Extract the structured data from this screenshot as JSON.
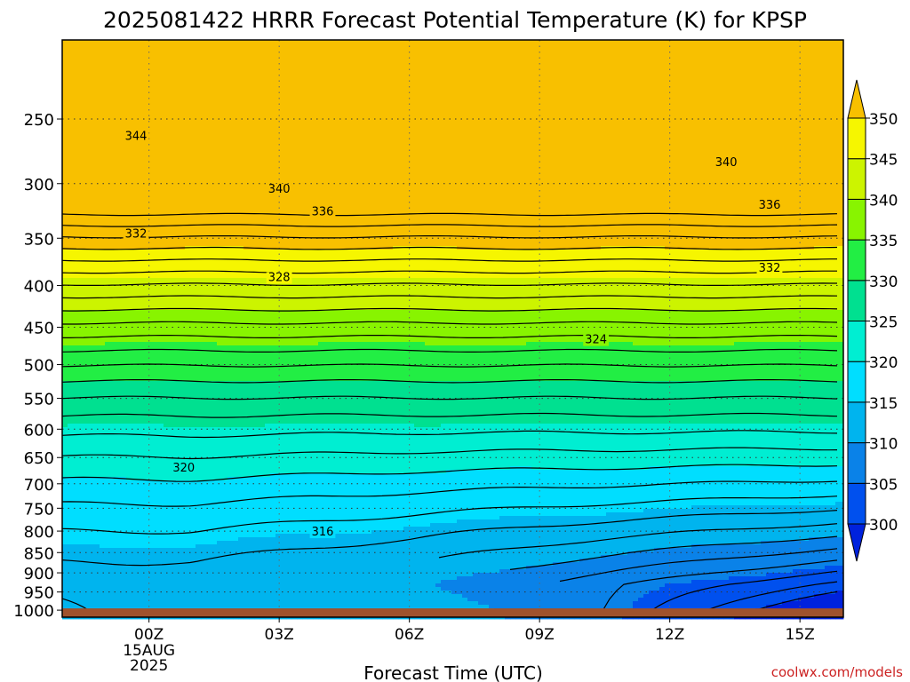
{
  "chart_data": {
    "type": "heatmap",
    "title": "2025081422 HRRR Forecast Potential Temperature (K) for KPSP",
    "xlabel": "Forecast Time (UTC)",
    "credit": "coolwx.com/models",
    "x_ticks": [
      {
        "label": "00Z",
        "hour": 2,
        "date_lines": [
          "15AUG",
          "2025"
        ]
      },
      {
        "label": "03Z",
        "hour": 5
      },
      {
        "label": "06Z",
        "hour": 8
      },
      {
        "label": "09Z",
        "hour": 11
      },
      {
        "label": "12Z",
        "hour": 14
      },
      {
        "label": "15Z",
        "hour": 17
      }
    ],
    "xlim": [
      0,
      18
    ],
    "y_ticks": [
      250,
      300,
      350,
      400,
      450,
      500,
      550,
      600,
      650,
      700,
      750,
      800,
      850,
      900,
      950,
      1000
    ],
    "ylim": [
      200,
      1020
    ],
    "yscale": "log",
    "colorbar": {
      "levels": [
        300,
        305,
        310,
        315,
        320,
        325,
        330,
        335,
        340,
        345,
        350
      ],
      "labels": [
        "300",
        "305",
        "310",
        "315",
        "320",
        "325",
        "330",
        "335",
        "340",
        "345",
        "350"
      ],
      "colors": [
        "#0022dd",
        "#0050ee",
        "#0a82e8",
        "#00b4ee",
        "#00deff",
        "#00eed2",
        "#00e090",
        "#22ee44",
        "#88f400",
        "#ccf400",
        "#f6f600",
        "#f8c000"
      ]
    },
    "contour_interval_K": 2,
    "contour_labels": [
      {
        "text": "344",
        "hour": 1.7,
        "p": 262
      },
      {
        "text": "340",
        "hour": 15.3,
        "p": 282
      },
      {
        "text": "340",
        "hour": 5.0,
        "p": 304
      },
      {
        "text": "336",
        "hour": 6.0,
        "p": 324
      },
      {
        "text": "336",
        "hour": 16.3,
        "p": 318
      },
      {
        "text": "332",
        "hour": 1.7,
        "p": 345
      },
      {
        "text": "332",
        "hour": 16.3,
        "p": 380
      },
      {
        "text": "328",
        "hour": 5.0,
        "p": 390
      },
      {
        "text": "324",
        "hour": 12.3,
        "p": 465
      },
      {
        "text": "320",
        "hour": 2.8,
        "p": 668
      },
      {
        "text": "316",
        "hour": 6.0,
        "p": 800
      }
    ],
    "ground_pressure": 995
  }
}
